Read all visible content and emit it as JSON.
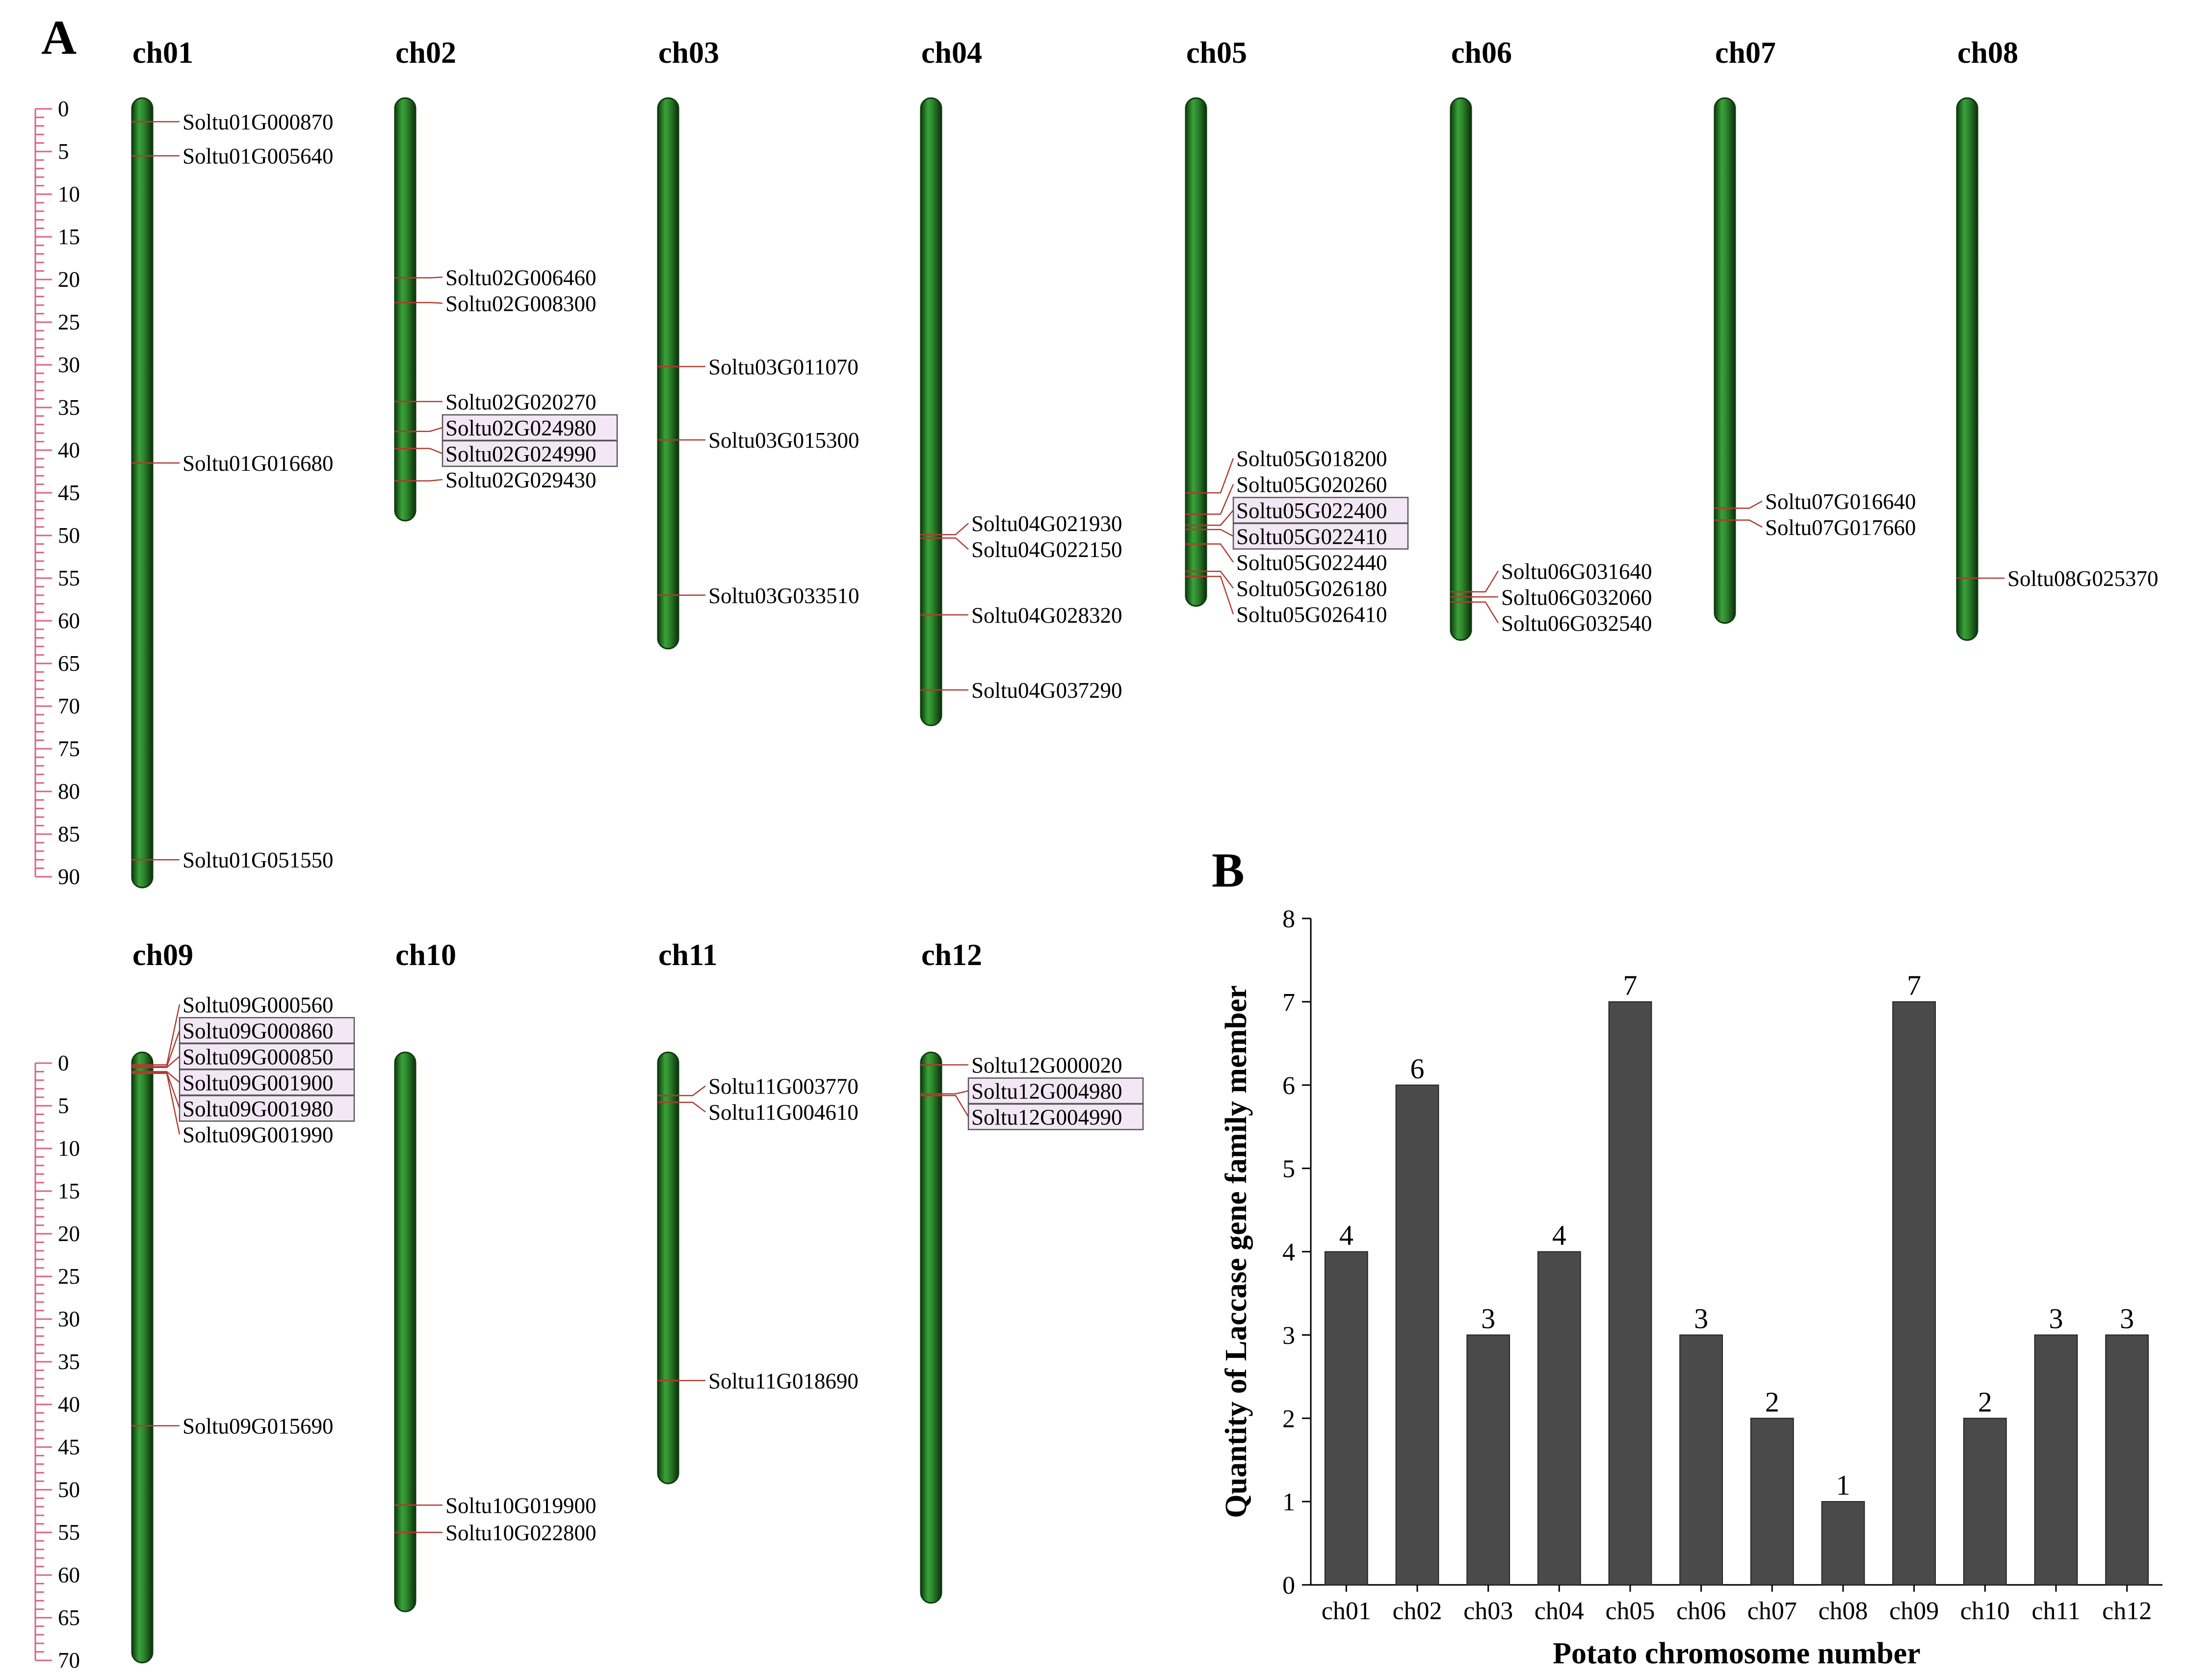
{
  "panel_a": {
    "label": "A",
    "scale": {
      "ticks": [
        0,
        5,
        10,
        15,
        20,
        25,
        30,
        35,
        40,
        45,
        50,
        55,
        60,
        65,
        70,
        75,
        80,
        85,
        90
      ]
    },
    "scale_bottom": {
      "ticks": [
        0,
        5,
        10,
        15,
        20,
        25,
        30,
        35,
        40,
        45,
        50,
        55,
        60,
        65,
        70
      ]
    },
    "chromosomes": [
      {
        "name": "ch01",
        "length": 90,
        "genes": [
          {
            "id": "Soltu01G000870",
            "pos": 1.5
          },
          {
            "id": "Soltu01G005640",
            "pos": 5.5
          },
          {
            "id": "Soltu01G016680",
            "pos": 41.5
          },
          {
            "id": "Soltu01G051550",
            "pos": 88.0
          }
        ]
      },
      {
        "name": "ch02",
        "length": 47,
        "genes": [
          {
            "id": "Soltu02G006460",
            "pos": 19.8
          },
          {
            "id": "Soltu02G008300",
            "pos": 22.7
          },
          {
            "id": "Soltu02G020270",
            "pos": 34.3
          },
          {
            "id": "Soltu02G024980",
            "pos": 37.8,
            "boxed": true
          },
          {
            "id": "Soltu02G024990",
            "pos": 39.8,
            "boxed": true
          },
          {
            "id": "Soltu02G029430",
            "pos": 43.6
          }
        ]
      },
      {
        "name": "ch03",
        "length": 62,
        "genes": [
          {
            "id": "Soltu03G011070",
            "pos": 30.2
          },
          {
            "id": "Soltu03G015300",
            "pos": 38.8
          },
          {
            "id": "Soltu03G033510",
            "pos": 57.0
          }
        ]
      },
      {
        "name": "ch04",
        "length": 71,
        "genes": [
          {
            "id": "Soltu04G021930",
            "pos": 49.9
          },
          {
            "id": "Soltu04G022150",
            "pos": 50.3
          },
          {
            "id": "Soltu04G028320",
            "pos": 59.3
          },
          {
            "id": "Soltu04G037290",
            "pos": 68.1
          }
        ]
      },
      {
        "name": "ch05",
        "length": 57,
        "genes": [
          {
            "id": "Soltu05G018200",
            "pos": 45.0
          },
          {
            "id": "Soltu05G020260",
            "pos": 47.5
          },
          {
            "id": "Soltu05G022400",
            "pos": 48.8,
            "boxed": true
          },
          {
            "id": "Soltu05G022410",
            "pos": 49.3,
            "boxed": true
          },
          {
            "id": "Soltu05G022440",
            "pos": 51.0
          },
          {
            "id": "Soltu05G026180",
            "pos": 54.2
          },
          {
            "id": "Soltu05G026410",
            "pos": 54.8
          }
        ]
      },
      {
        "name": "ch06",
        "length": 61,
        "genes": [
          {
            "id": "Soltu06G031640",
            "pos": 56.6
          },
          {
            "id": "Soltu06G032060",
            "pos": 57.2
          },
          {
            "id": "Soltu06G032540",
            "pos": 57.8
          }
        ]
      },
      {
        "name": "ch07",
        "length": 59,
        "genes": [
          {
            "id": "Soltu07G016640",
            "pos": 46.8
          },
          {
            "id": "Soltu07G017660",
            "pos": 48.2
          }
        ]
      },
      {
        "name": "ch08",
        "length": 61,
        "genes": [
          {
            "id": "Soltu08G025370",
            "pos": 55.0
          }
        ]
      },
      {
        "name": "ch09",
        "length": 69,
        "genes": [
          {
            "id": "Soltu09G000560",
            "pos": 0.2
          },
          {
            "id": "Soltu09G000860",
            "pos": 0.4,
            "boxed": true
          },
          {
            "id": "Soltu09G000850",
            "pos": 0.5,
            "boxed": true
          },
          {
            "id": "Soltu09G001900",
            "pos": 1.0,
            "boxed": true
          },
          {
            "id": "Soltu09G001980",
            "pos": 1.1,
            "boxed": true
          },
          {
            "id": "Soltu09G001990",
            "pos": 1.2
          },
          {
            "id": "Soltu09G015690",
            "pos": 42.5
          }
        ]
      },
      {
        "name": "ch10",
        "length": 63,
        "genes": [
          {
            "id": "Soltu10G019900",
            "pos": 51.8
          },
          {
            "id": "Soltu10G022800",
            "pos": 55.0
          }
        ]
      },
      {
        "name": "ch11",
        "length": 48,
        "genes": [
          {
            "id": "Soltu11G003770",
            "pos": 3.8
          },
          {
            "id": "Soltu11G004610",
            "pos": 4.6
          },
          {
            "id": "Soltu11G018690",
            "pos": 37.2
          }
        ]
      },
      {
        "name": "ch12",
        "length": 62,
        "genes": [
          {
            "id": "Soltu12G000020",
            "pos": 0.2
          },
          {
            "id": "Soltu12G004980",
            "pos": 3.6,
            "boxed": true
          },
          {
            "id": "Soltu12G004990",
            "pos": 3.8,
            "boxed": true
          }
        ]
      }
    ]
  },
  "panel_b": {
    "label": "B"
  },
  "chart_data": {
    "type": "bar",
    "categories": [
      "ch01",
      "ch02",
      "ch03",
      "ch04",
      "ch05",
      "ch06",
      "ch07",
      "ch08",
      "ch09",
      "ch10",
      "ch11",
      "ch12"
    ],
    "values": [
      4,
      6,
      3,
      4,
      7,
      3,
      2,
      1,
      7,
      2,
      3,
      3
    ],
    "xlabel": "Potato chromosome number",
    "ylabel": "Quantity of Laccase gene family member",
    "ylim": [
      0,
      8
    ],
    "yticks": [
      0,
      1,
      2,
      3,
      4,
      5,
      6,
      7,
      8
    ],
    "bar_color": "#4a4a4a"
  },
  "colors": {
    "chromosome_fill": "#2f8a2f",
    "chromosome_edge": "#0f3a0f",
    "scale_color": "#e0607e",
    "marker_color": "#b03a30",
    "tandem_box_fill": "#f3e6f5"
  }
}
